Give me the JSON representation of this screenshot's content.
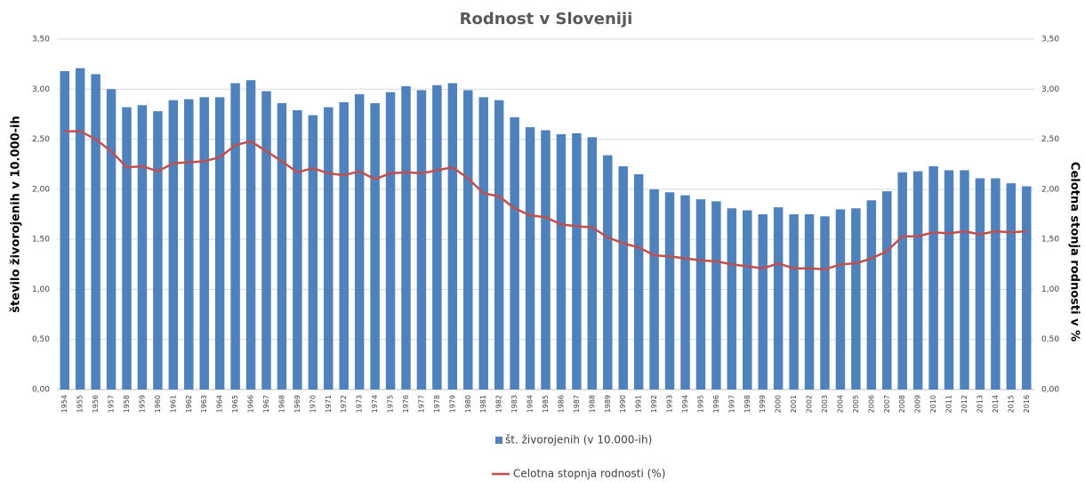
{
  "chart_data": {
    "type": "bar_line",
    "title": "Rodnost v Sloveniji",
    "y_label": "število živorojenih v 10.000-ih",
    "y2_label": "Celotna stonja rodnosti v %",
    "categories": [
      "1954",
      "1955",
      "1956",
      "1957",
      "1958",
      "1959",
      "1960",
      "1961",
      "1962",
      "1963",
      "1964",
      "1965",
      "1966",
      "1967",
      "1968",
      "1969",
      "1970",
      "1971",
      "1972",
      "1973",
      "1974",
      "1975",
      "1976",
      "1977",
      "1978",
      "1979",
      "1980",
      "1981",
      "1982",
      "1983",
      "1984",
      "1985",
      "1986",
      "1987",
      "1988",
      "1989",
      "1990",
      "1991",
      "1992",
      "1993",
      "1994",
      "1995",
      "1996",
      "1997",
      "1998",
      "1999",
      "2000",
      "2001",
      "2002",
      "2003",
      "2004",
      "2005",
      "2006",
      "2007",
      "2008",
      "2009",
      "2010",
      "2011",
      "2012",
      "2013",
      "2014",
      "2015",
      "2016"
    ],
    "series": [
      {
        "name": "št. živorojenih (v 10.000-ih)",
        "type": "bar",
        "color": "#4f81bd",
        "values": [
          3.18,
          3.21,
          3.15,
          3.0,
          2.82,
          2.84,
          2.78,
          2.89,
          2.9,
          2.92,
          2.92,
          3.06,
          3.09,
          2.98,
          2.86,
          2.79,
          2.74,
          2.82,
          2.87,
          2.95,
          2.86,
          2.97,
          3.03,
          2.99,
          3.04,
          3.06,
          2.99,
          2.92,
          2.89,
          2.72,
          2.62,
          2.59,
          2.55,
          2.56,
          2.52,
          2.34,
          2.23,
          2.15,
          2.0,
          1.97,
          1.94,
          1.9,
          1.88,
          1.81,
          1.79,
          1.75,
          1.82,
          1.75,
          1.75,
          1.73,
          1.8,
          1.81,
          1.89,
          1.98,
          2.17,
          2.18,
          2.23,
          2.19,
          2.19,
          2.11,
          2.11,
          2.06,
          2.03
        ]
      },
      {
        "name": "Celotna stopnja rodnosti (%)",
        "type": "line",
        "axis": "y2",
        "color": "#c0504d",
        "values": [
          2.58,
          2.58,
          2.5,
          2.38,
          2.22,
          2.23,
          2.18,
          2.26,
          2.27,
          2.28,
          2.32,
          2.44,
          2.48,
          2.38,
          2.28,
          2.17,
          2.21,
          2.16,
          2.14,
          2.18,
          2.1,
          2.16,
          2.17,
          2.16,
          2.19,
          2.22,
          2.11,
          1.96,
          1.93,
          1.81,
          1.74,
          1.72,
          1.65,
          1.63,
          1.62,
          1.52,
          1.46,
          1.42,
          1.34,
          1.33,
          1.31,
          1.29,
          1.28,
          1.25,
          1.23,
          1.21,
          1.26,
          1.21,
          1.21,
          1.2,
          1.25,
          1.26,
          1.31,
          1.38,
          1.53,
          1.53,
          1.57,
          1.56,
          1.58,
          1.55,
          1.58,
          1.57,
          1.58
        ]
      }
    ],
    "ylim": [
      0,
      3.5
    ],
    "yticks": [
      {
        "value": 0,
        "label": "0,00"
      },
      {
        "value": 0.5,
        "label": "0,50"
      },
      {
        "value": 1,
        "label": "1,00"
      },
      {
        "value": 1.5,
        "label": "1,50"
      },
      {
        "value": 2,
        "label": "2,00"
      },
      {
        "value": 2.5,
        "label": "2,50"
      },
      {
        "value": 3,
        "label": "3,00"
      },
      {
        "value": 3.5,
        "label": "3,50"
      }
    ],
    "y2lim": [
      0,
      3.5
    ],
    "y2ticks": [
      {
        "value": 0,
        "label": "0,00"
      },
      {
        "value": 0.5,
        "label": "0,50"
      },
      {
        "value": 1,
        "label": "1,00"
      },
      {
        "value": 1.5,
        "label": "1,50"
      },
      {
        "value": 2,
        "label": "2,00"
      },
      {
        "value": 2.5,
        "label": "2,50"
      },
      {
        "value": 3,
        "label": "3,00"
      },
      {
        "value": 3.5,
        "label": "3,50"
      }
    ],
    "grid": true,
    "legend": "bottom"
  }
}
